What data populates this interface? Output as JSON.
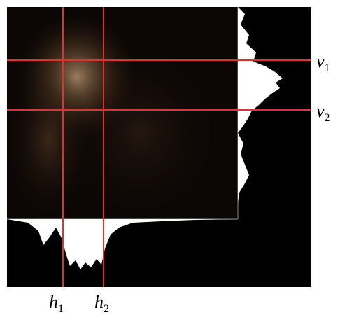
{
  "labels": {
    "h1": {
      "letter": "h",
      "subscript": "1"
    },
    "h2": {
      "letter": "h",
      "subscript": "2"
    },
    "v1": {
      "letter": "v",
      "subscript": "1"
    },
    "v2": {
      "letter": "v",
      "subscript": "2"
    }
  }
}
